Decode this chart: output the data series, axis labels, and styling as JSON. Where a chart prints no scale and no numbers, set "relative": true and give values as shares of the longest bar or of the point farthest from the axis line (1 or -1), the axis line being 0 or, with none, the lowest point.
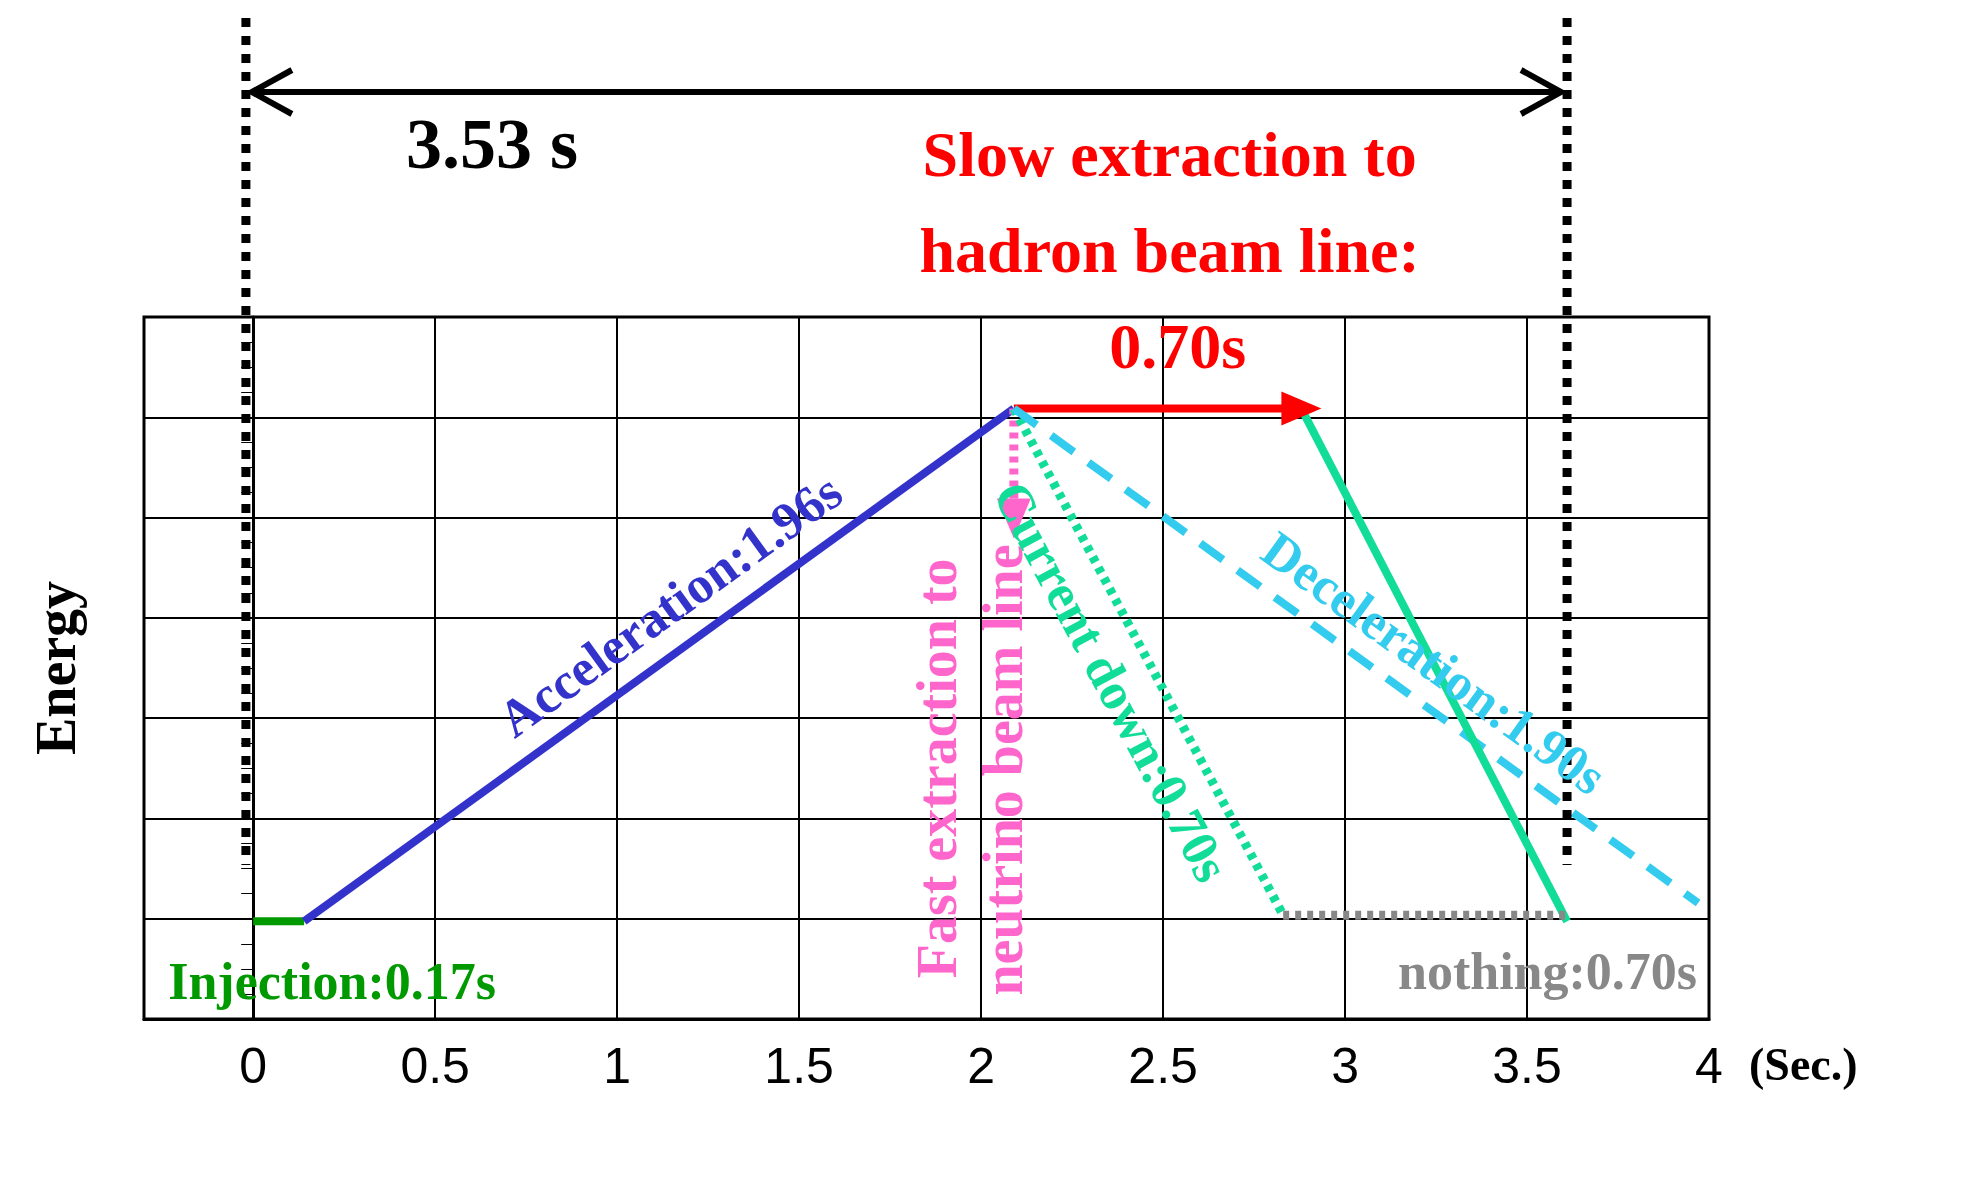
{
  "chart_data": {
    "type": "line",
    "relative": true,
    "xlabel": "(Sec.)",
    "ylabel": "Energy",
    "xlim": [
      -0.3,
      4
    ],
    "xticks": [
      0,
      0.5,
      1,
      1.5,
      2,
      2.5,
      3,
      3.5,
      4
    ],
    "grid": true,
    "legend": false,
    "annotations": [
      "3.53 s"
    ],
    "ref_lines": [
      {
        "axis": "x",
        "value": -0.02,
        "label": null,
        "color": "#000000",
        "line_style": "dotted"
      },
      {
        "axis": "x",
        "value": 3.61,
        "label": null,
        "color": "#000000",
        "line_style": "dotted"
      }
    ],
    "series": [
      {
        "name": "Injection:0.17s",
        "color": "#009900",
        "x": [
          0,
          0.14
        ],
        "values": [
          0.16,
          0.16
        ],
        "line_style": "solid"
      },
      {
        "name": "Acceleration:1.96s",
        "color": "#3333cc",
        "x": [
          0.14,
          2.09
        ],
        "values": [
          0.16,
          1
        ],
        "line_style": "solid"
      },
      {
        "name": "Slow extraction to hadron beam line: 0.70s",
        "color": "#ff0000",
        "x": [
          2.09,
          2.88
        ],
        "values": [
          1,
          1
        ],
        "line_style": "solid",
        "marker": "triangle"
      },
      {
        "name": "Fast extraction to neutrino beam line",
        "color": "#ff66cc",
        "x": [
          2.09,
          2.09
        ],
        "values": [
          1,
          0.82
        ],
        "line_style": "dotted",
        "marker": "triangle"
      },
      {
        "name": "Current down:0.70s",
        "color": "#11dd99",
        "x": [
          2.09,
          2.83
        ],
        "values": [
          1,
          0.17
        ],
        "line_style": "dotted"
      },
      {
        "name": "Deceleration:1.90s",
        "color": "#33ccee",
        "x": [
          2.09,
          3.97
        ],
        "values": [
          1,
          0.19
        ],
        "line_style": "dashed"
      },
      {
        "color": "#11dd99",
        "x": [
          2.88,
          3.61
        ],
        "values": [
          1,
          0.16
        ],
        "line_style": "solid"
      },
      {
        "name": "nothing:0.70s",
        "color": "#888888",
        "x": [
          2.83,
          3.61
        ],
        "values": [
          0.17,
          0.17
        ],
        "line_style": "dotted"
      }
    ]
  }
}
